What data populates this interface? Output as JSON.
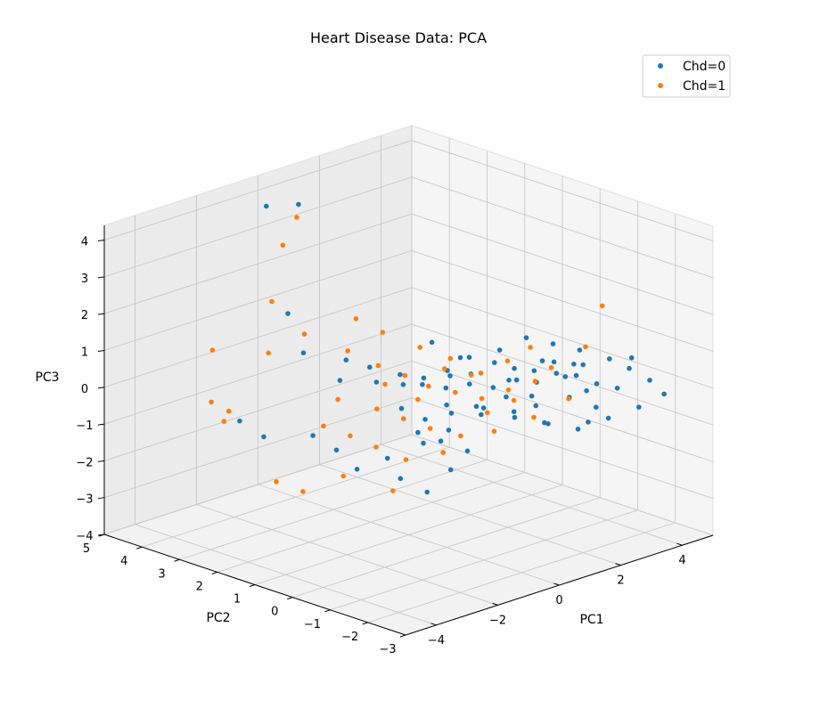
{
  "chart_data": {
    "type": "scatter",
    "title": "Heart Disease Data: PCA",
    "xlabel": "PC1",
    "ylabel": "PC2",
    "zlabel": "PC3",
    "grid": true,
    "legend_position": "top-right",
    "x_ticks": [
      "−4",
      "−2",
      "0",
      "2",
      "4"
    ],
    "y_ticks": [
      "−2",
      "−1",
      "0",
      "1",
      "2",
      "3",
      "4",
      "5"
    ],
    "y_tick_first_label": "−3",
    "z_ticks": [
      "−4",
      "−3",
      "−2",
      "−1",
      "0",
      "1",
      "2",
      "3",
      "4"
    ],
    "series": [
      {
        "name": "Chd=0",
        "color": "#1f77b4",
        "points": [
          [
            -1.2,
            3.8,
            4.3
          ],
          [
            -0.4,
            3.6,
            4.2
          ],
          [
            -1.6,
            2.9,
            1.8
          ],
          [
            -2.2,
            2.0,
            1.2
          ],
          [
            -2.8,
            3.2,
            -0.9
          ],
          [
            -3.0,
            2.4,
            -1.0
          ],
          [
            -1.5,
            1.6,
            0.4
          ],
          [
            -0.8,
            1.2,
            0.3
          ],
          [
            -0.3,
            0.9,
            0.2
          ],
          [
            0.2,
            0.8,
            0.1
          ],
          [
            0.6,
            0.5,
            0.0
          ],
          [
            1.0,
            0.2,
            0.1
          ],
          [
            1.4,
            -0.1,
            0.0
          ],
          [
            1.8,
            -0.4,
            0.2
          ],
          [
            2.2,
            -0.6,
            0.1
          ],
          [
            2.6,
            -0.8,
            0.3
          ],
          [
            3.0,
            -1.0,
            0.2
          ],
          [
            3.3,
            -1.3,
            0.0
          ],
          [
            3.6,
            -1.6,
            -0.1
          ],
          [
            2.8,
            -1.1,
            0.6
          ],
          [
            2.4,
            -0.9,
            0.7
          ],
          [
            2.0,
            -0.7,
            0.5
          ],
          [
            1.6,
            -0.5,
            0.6
          ],
          [
            1.2,
            -0.3,
            0.8
          ],
          [
            0.8,
            0.0,
            0.5
          ],
          [
            0.4,
            0.3,
            0.6
          ],
          [
            0.0,
            0.6,
            0.4
          ],
          [
            -0.4,
            0.9,
            0.5
          ],
          [
            -0.9,
            1.3,
            0.7
          ],
          [
            -1.3,
            1.6,
            0.9
          ],
          [
            0.5,
            0.4,
            -0.4
          ],
          [
            1.1,
            0.1,
            -0.5
          ],
          [
            1.7,
            -0.2,
            -0.3
          ],
          [
            2.3,
            -0.5,
            -0.6
          ],
          [
            2.9,
            -0.9,
            -0.4
          ],
          [
            3.4,
            -1.2,
            -0.7
          ],
          [
            0.9,
            0.6,
            -0.8
          ],
          [
            1.5,
            0.3,
            -0.9
          ],
          [
            2.1,
            -0.1,
            -1.0
          ],
          [
            2.7,
            -0.5,
            -1.2
          ],
          [
            0.3,
            1.0,
            -1.3
          ],
          [
            0.8,
            0.8,
            -1.6
          ],
          [
            1.3,
            0.5,
            -1.9
          ],
          [
            -0.2,
            1.4,
            -2.0
          ],
          [
            -0.7,
            1.8,
            -2.3
          ],
          [
            0.1,
            1.3,
            -2.6
          ],
          [
            0.6,
            1.0,
            -3.0
          ],
          [
            1.0,
            0.7,
            -2.4
          ],
          [
            -1.0,
            2.1,
            -1.8
          ],
          [
            -1.4,
            2.4,
            -1.4
          ],
          [
            3.1,
            -1.8,
            0.9
          ],
          [
            3.5,
            -2.0,
            0.6
          ],
          [
            3.8,
            -2.3,
            0.3
          ],
          [
            2.5,
            -1.5,
            1.2
          ],
          [
            2.0,
            -1.2,
            1.4
          ],
          [
            1.5,
            -0.9,
            1.6
          ],
          [
            1.0,
            -0.6,
            1.3
          ],
          [
            0.5,
            -0.2,
            1.1
          ],
          [
            -0.1,
            0.3,
            1.5
          ],
          [
            3.2,
            -2.5,
            -0.2
          ],
          [
            2.7,
            -2.1,
            -0.5
          ],
          [
            2.2,
            -1.7,
            -0.8
          ],
          [
            1.6,
            -1.3,
            -0.6
          ],
          [
            1.1,
            -0.9,
            -0.3
          ],
          [
            0.6,
            -0.5,
            -0.2
          ],
          [
            3.7,
            -1.9,
            0.8
          ],
          [
            3.9,
            -2.6,
            0.0
          ],
          [
            2.9,
            -1.4,
            -0.9
          ],
          [
            2.4,
            -1.2,
            0.4
          ],
          [
            1.9,
            -1.0,
            0.9
          ],
          [
            -0.6,
            0.7,
            -0.3
          ],
          [
            -0.2,
            0.4,
            -0.6
          ],
          [
            0.2,
            0.1,
            -0.9
          ],
          [
            1.3,
            -0.6,
            0.4
          ],
          [
            1.8,
            -0.8,
            -0.1
          ],
          [
            2.6,
            -1.6,
            0.1
          ],
          [
            3.1,
            -1.1,
            0.5
          ],
          [
            0.7,
            0.2,
            0.9
          ],
          [
            0.0,
            -0.1,
            0.7
          ],
          [
            -0.5,
            0.2,
            -1.1
          ]
        ]
      },
      {
        "name": "Chd=1",
        "color": "#ff7f0e",
        "points": [
          [
            -1.4,
            3.2,
            3.5
          ],
          [
            -0.7,
            3.4,
            4.0
          ],
          [
            -2.0,
            3.0,
            2.2
          ],
          [
            -3.2,
            3.6,
            1.0
          ],
          [
            -3.6,
            3.3,
            -0.2
          ],
          [
            -3.4,
            3.0,
            -0.4
          ],
          [
            -3.8,
            2.8,
            -0.5
          ],
          [
            -2.6,
            2.6,
            1.1
          ],
          [
            -1.8,
            2.3,
            1.5
          ],
          [
            -1.0,
            1.8,
            1.0
          ],
          [
            -0.5,
            1.4,
            0.6
          ],
          [
            0.0,
            1.1,
            0.3
          ],
          [
            0.4,
            0.8,
            0.0
          ],
          [
            0.9,
            0.5,
            -0.2
          ],
          [
            1.4,
            0.2,
            -0.4
          ],
          [
            1.9,
            -0.1,
            -0.2
          ],
          [
            2.4,
            -0.4,
            0.0
          ],
          [
            -0.3,
            1.6,
            -0.7
          ],
          [
            0.2,
            1.3,
            -1.0
          ],
          [
            0.7,
            1.0,
            -1.3
          ],
          [
            -0.8,
            1.9,
            -1.4
          ],
          [
            -1.3,
            2.2,
            -1.1
          ],
          [
            -0.2,
            1.7,
            -1.8
          ],
          [
            0.4,
            1.4,
            -2.2
          ],
          [
            -1.6,
            2.5,
            -2.9
          ],
          [
            -2.1,
            2.8,
            -2.6
          ],
          [
            0.1,
            1.5,
            -3.0
          ],
          [
            1.2,
            0.6,
            -1.5
          ],
          [
            1.7,
            0.3,
            -0.9
          ],
          [
            2.2,
            0.0,
            -0.6
          ],
          [
            2.8,
            -0.5,
            0.3
          ],
          [
            3.3,
            -1.0,
            0.9
          ],
          [
            3.6,
            -1.2,
            2.0
          ],
          [
            1.5,
            -0.4,
            0.8
          ],
          [
            1.0,
            -0.1,
            0.5
          ],
          [
            0.5,
            0.3,
            0.9
          ],
          [
            0.0,
            0.7,
            1.2
          ],
          [
            -0.6,
            1.2,
            1.6
          ],
          [
            -1.1,
            1.5,
            2.0
          ],
          [
            2.0,
            -0.6,
            1.1
          ],
          [
            1.3,
            0.4,
            0.2
          ],
          [
            0.8,
            0.7,
            0.4
          ],
          [
            0.3,
            1.0,
            -0.4
          ],
          [
            -0.4,
            1.3,
            0.1
          ],
          [
            -1.2,
            1.9,
            -0.3
          ],
          [
            2.6,
            -0.2,
            -1.1
          ],
          [
            1.8,
            0.2,
            -1.4
          ],
          [
            1.0,
            0.9,
            -2.0
          ],
          [
            -0.9,
            2.0,
            -2.5
          ],
          [
            3.0,
            -0.8,
            -0.5
          ]
        ]
      }
    ]
  }
}
